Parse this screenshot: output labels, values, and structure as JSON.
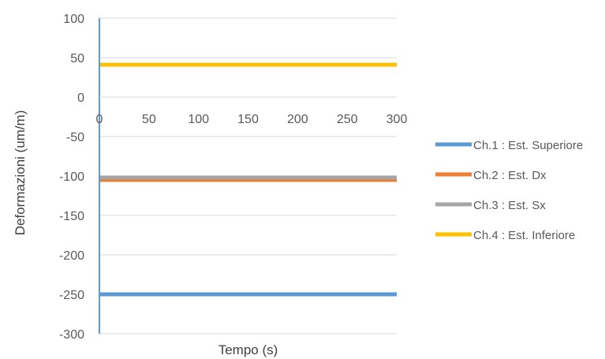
{
  "chart_data": {
    "type": "line",
    "title": "",
    "xlabel": "Tempo (s)",
    "ylabel": "Deformazioni (um/m)",
    "xlim": [
      0,
      300
    ],
    "ylim": [
      -300,
      100
    ],
    "x_ticks": [
      0,
      50,
      100,
      150,
      200,
      250,
      300
    ],
    "y_ticks": [
      100,
      50,
      0,
      -50,
      -100,
      -150,
      -200,
      -250,
      -300
    ],
    "grid": "horizontal",
    "legend_position": "right",
    "series": [
      {
        "name": "Ch.1 : Est. Superiore",
        "color": "#5B9BD5",
        "x": [
          0,
          300
        ],
        "y": [
          -250,
          -250
        ]
      },
      {
        "name": "Ch.2 : Est. Dx",
        "color": "#ED7D31",
        "x": [
          0,
          300
        ],
        "y": [
          -105,
          -105
        ]
      },
      {
        "name": "Ch.3 : Est. Sx",
        "color": "#A5A5A5",
        "x": [
          0,
          300
        ],
        "y": [
          -102,
          -102
        ]
      },
      {
        "name": "Ch.4 : Est. Inferiore",
        "color": "#FFC000",
        "x": [
          0,
          300
        ],
        "y": [
          41,
          41
        ]
      }
    ]
  }
}
